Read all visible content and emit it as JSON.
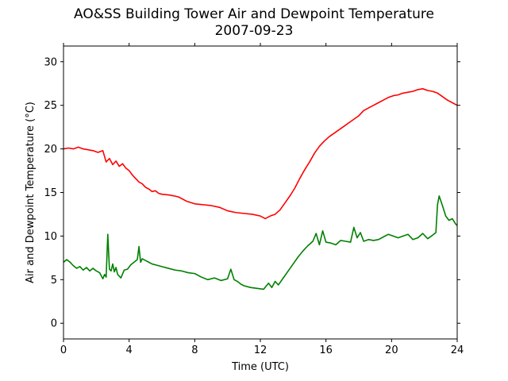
{
  "chart_data": {
    "type": "line",
    "title": [
      "AO&SS Building Tower Air and Dewpoint Temperature",
      "2007-09-23"
    ],
    "xlabel": "Time (UTC)",
    "ylabel": "Air and Dewpoint Temperature (°C)",
    "xlim": [
      0,
      24
    ],
    "ylim": [
      -1.8,
      31.8
    ],
    "xticks": [
      0,
      4,
      8,
      12,
      16,
      20,
      24
    ],
    "yticks": [
      0,
      5,
      10,
      15,
      20,
      25,
      30
    ],
    "grid": false,
    "colors": {
      "air": "#ff0000",
      "dewpoint": "#008000"
    },
    "series": [
      {
        "color": "#ff0000",
        "x": [
          0,
          0.3,
          0.6,
          0.9,
          1.2,
          1.5,
          1.8,
          2.1,
          2.4,
          2.6,
          2.8,
          3.0,
          3.2,
          3.4,
          3.6,
          3.8,
          4.0,
          4.2,
          4.4,
          4.6,
          4.8,
          5.0,
          5.2,
          5.4,
          5.6,
          5.8,
          6.0,
          6.5,
          7.0,
          7.5,
          8.0,
          8.5,
          9.0,
          9.5,
          10.0,
          10.5,
          11.0,
          11.5,
          12.0,
          12.3,
          12.6,
          12.9,
          13.2,
          13.5,
          13.8,
          14.1,
          14.4,
          14.7,
          15.0,
          15.3,
          15.6,
          15.9,
          16.2,
          16.5,
          16.8,
          17.1,
          17.4,
          17.7,
          18.0,
          18.3,
          18.6,
          18.9,
          19.2,
          19.5,
          19.8,
          20.1,
          20.4,
          20.7,
          21.0,
          21.3,
          21.6,
          21.9,
          22.2,
          22.5,
          22.8,
          23.1,
          23.4,
          23.7,
          24.0
        ],
        "y": [
          20.0,
          20.1,
          20.0,
          20.2,
          20.0,
          19.9,
          19.8,
          19.6,
          19.8,
          18.5,
          18.9,
          18.2,
          18.6,
          18.0,
          18.3,
          17.8,
          17.5,
          17.0,
          16.6,
          16.2,
          16.0,
          15.6,
          15.4,
          15.1,
          15.2,
          14.9,
          14.8,
          14.7,
          14.5,
          14.0,
          13.7,
          13.6,
          13.5,
          13.3,
          12.9,
          12.7,
          12.6,
          12.5,
          12.3,
          12.0,
          12.3,
          12.5,
          13.0,
          13.8,
          14.6,
          15.5,
          16.6,
          17.6,
          18.5,
          19.5,
          20.3,
          20.9,
          21.4,
          21.8,
          22.2,
          22.6,
          23.0,
          23.4,
          23.8,
          24.4,
          24.7,
          25.0,
          25.3,
          25.6,
          25.9,
          26.1,
          26.2,
          26.4,
          26.5,
          26.6,
          26.8,
          26.9,
          26.7,
          26.6,
          26.4,
          26.0,
          25.6,
          25.3,
          25.0
        ]
      },
      {
        "color": "#008000",
        "x": [
          0,
          0.2,
          0.4,
          0.6,
          0.8,
          1.0,
          1.2,
          1.4,
          1.6,
          1.8,
          2.0,
          2.2,
          2.4,
          2.5,
          2.6,
          2.7,
          2.8,
          2.9,
          3.0,
          3.1,
          3.2,
          3.3,
          3.5,
          3.7,
          3.9,
          4.1,
          4.3,
          4.5,
          4.6,
          4.7,
          4.8,
          5.0,
          5.2,
          5.4,
          5.6,
          5.8,
          6.0,
          6.4,
          6.8,
          7.2,
          7.6,
          8.0,
          8.4,
          8.8,
          9.2,
          9.6,
          10.0,
          10.2,
          10.4,
          10.6,
          10.8,
          11.0,
          11.4,
          11.8,
          12.2,
          12.5,
          12.7,
          12.9,
          13.1,
          13.4,
          13.7,
          14.0,
          14.3,
          14.6,
          14.9,
          15.2,
          15.4,
          15.6,
          15.8,
          16.0,
          16.3,
          16.6,
          16.9,
          17.2,
          17.5,
          17.7,
          17.9,
          18.1,
          18.3,
          18.6,
          18.9,
          19.2,
          19.5,
          19.8,
          20.1,
          20.4,
          20.7,
          21.0,
          21.3,
          21.6,
          21.9,
          22.2,
          22.5,
          22.7,
          22.8,
          22.9,
          23.1,
          23.3,
          23.5,
          23.7,
          23.9,
          24.0
        ],
        "y": [
          7.0,
          7.3,
          7.0,
          6.6,
          6.3,
          6.5,
          6.1,
          6.4,
          6.0,
          6.3,
          6.0,
          5.8,
          5.1,
          5.6,
          5.3,
          10.2,
          6.2,
          6.0,
          6.8,
          5.9,
          6.4,
          5.6,
          5.2,
          6.1,
          6.2,
          6.7,
          7.0,
          7.3,
          8.8,
          7.0,
          7.4,
          7.2,
          7.0,
          6.8,
          6.7,
          6.6,
          6.5,
          6.3,
          6.1,
          6.0,
          5.8,
          5.7,
          5.3,
          5.0,
          5.2,
          4.9,
          5.1,
          6.2,
          5.0,
          4.8,
          4.5,
          4.3,
          4.1,
          4.0,
          3.9,
          4.6,
          4.1,
          4.8,
          4.4,
          5.2,
          6.0,
          6.8,
          7.6,
          8.3,
          8.9,
          9.4,
          10.3,
          9.0,
          10.6,
          9.3,
          9.2,
          9.0,
          9.5,
          9.4,
          9.3,
          11.0,
          9.8,
          10.4,
          9.4,
          9.6,
          9.5,
          9.6,
          9.9,
          10.2,
          10.0,
          9.8,
          10.0,
          10.2,
          9.6,
          9.8,
          10.3,
          9.7,
          10.1,
          10.4,
          13.6,
          14.6,
          13.5,
          12.3,
          11.8,
          12.0,
          11.4,
          11.2
        ]
      }
    ]
  }
}
